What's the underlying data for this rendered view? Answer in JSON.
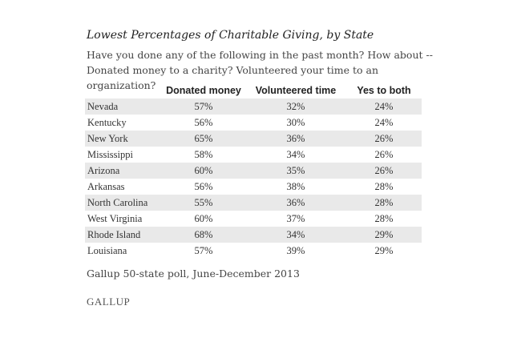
{
  "chart_data": {
    "type": "table",
    "title": "Lowest Percentages of Charitable Giving, by State",
    "subtitle": "Have you done any of the following in the past month? How about -- Donated money to a charity? Volunteered your time to an organization?",
    "columns": [
      "",
      "Donated money",
      "Volunteered time",
      "Yes to both"
    ],
    "rows": [
      {
        "state": "Nevada",
        "donated": "57%",
        "volunteered": "32%",
        "both": "24%"
      },
      {
        "state": "Kentucky",
        "donated": "56%",
        "volunteered": "30%",
        "both": "24%"
      },
      {
        "state": "New York",
        "donated": "65%",
        "volunteered": "36%",
        "both": "26%"
      },
      {
        "state": "Mississippi",
        "donated": "58%",
        "volunteered": "34%",
        "both": "26%"
      },
      {
        "state": "Arizona",
        "donated": "60%",
        "volunteered": "35%",
        "both": "26%"
      },
      {
        "state": "Arkansas",
        "donated": "56%",
        "volunteered": "38%",
        "both": "28%"
      },
      {
        "state": "North Carolina",
        "donated": "55%",
        "volunteered": "36%",
        "both": "28%"
      },
      {
        "state": "West Virginia",
        "donated": "60%",
        "volunteered": "37%",
        "both": "28%"
      },
      {
        "state": "Rhode Island",
        "donated": "68%",
        "volunteered": "34%",
        "both": "29%"
      },
      {
        "state": "Louisiana",
        "donated": "57%",
        "volunteered": "39%",
        "both": "29%"
      }
    ],
    "row_shading": "#e9e9e9"
  },
  "source": "Gallup 50-state poll, June-December 2013",
  "logo_text": "GALLUP"
}
